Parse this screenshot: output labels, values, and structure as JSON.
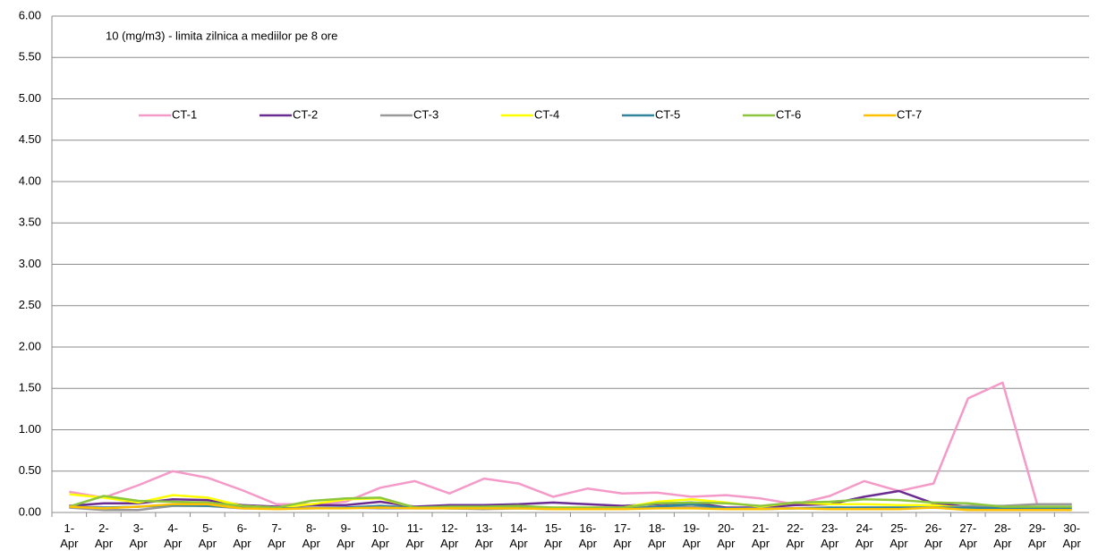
{
  "chart_data": {
    "type": "line",
    "annotation": "10 (mg/m3)  - limita zilnica a mediilor pe 8 ore",
    "categories": [
      "1-Apr",
      "2-Apr",
      "3-Apr",
      "4-Apr",
      "5-Apr",
      "6-Apr",
      "7-Apr",
      "8-Apr",
      "9-Apr",
      "10-Apr",
      "11-Apr",
      "12-Apr",
      "13-Apr",
      "14-Apr",
      "15-Apr",
      "16-Apr",
      "17-Apr",
      "18-Apr",
      "19-Apr",
      "20-Apr",
      "21-Apr",
      "22-Apr",
      "23-Apr",
      "24-Apr",
      "25-Apr",
      "26-Apr",
      "27-Apr",
      "28-Apr",
      "29-Apr",
      "30-Apr"
    ],
    "series": [
      {
        "name": "CT-1",
        "color": "#f49ac8",
        "values": [
          0.25,
          0.18,
          0.33,
          0.5,
          0.42,
          0.27,
          0.1,
          0.1,
          0.13,
          0.3,
          0.38,
          0.23,
          0.41,
          0.35,
          0.19,
          0.29,
          0.23,
          0.24,
          0.19,
          0.21,
          0.17,
          0.1,
          0.2,
          0.38,
          0.26,
          0.35,
          1.38,
          1.57,
          0.1,
          0.1
        ]
      },
      {
        "name": "CT-2",
        "color": "#6a2c91",
        "values": [
          0.08,
          0.11,
          0.11,
          0.16,
          0.15,
          0.09,
          0.07,
          0.09,
          0.09,
          0.13,
          0.07,
          0.09,
          0.09,
          0.1,
          0.12,
          0.1,
          0.08,
          0.1,
          0.12,
          0.06,
          0.06,
          0.09,
          0.1,
          0.19,
          0.26,
          0.11,
          0.07,
          0.06,
          0.06,
          0.06
        ]
      },
      {
        "name": "CT-3",
        "color": "#999999",
        "values": [
          0.06,
          0.03,
          0.03,
          0.08,
          0.08,
          0.05,
          0.05,
          0.06,
          0.06,
          0.05,
          0.05,
          0.05,
          0.04,
          0.05,
          0.04,
          0.04,
          0.05,
          0.07,
          0.07,
          0.05,
          0.05,
          0.05,
          0.05,
          0.06,
          0.06,
          0.06,
          0.08,
          0.08,
          0.1,
          0.1
        ]
      },
      {
        "name": "CT-4",
        "color": "#ffff00",
        "values": [
          0.22,
          0.18,
          0.12,
          0.21,
          0.18,
          0.08,
          0.06,
          0.1,
          0.16,
          0.17,
          0.06,
          0.06,
          0.06,
          0.07,
          0.06,
          0.06,
          0.06,
          0.13,
          0.16,
          0.12,
          0.07,
          0.12,
          0.1,
          0.1,
          0.09,
          0.09,
          0.05,
          0.05,
          0.05,
          0.05
        ]
      },
      {
        "name": "CT-5",
        "color": "#31859c",
        "values": [
          0.07,
          0.06,
          0.07,
          0.09,
          0.08,
          0.06,
          0.05,
          0.05,
          0.06,
          0.08,
          0.06,
          0.05,
          0.05,
          0.06,
          0.05,
          0.04,
          0.04,
          0.07,
          0.1,
          0.05,
          0.04,
          0.05,
          0.06,
          0.06,
          0.06,
          0.06,
          0.06,
          0.05,
          0.05,
          0.05
        ]
      },
      {
        "name": "CT-6",
        "color": "#8cc63f",
        "values": [
          0.07,
          0.2,
          0.14,
          0.13,
          0.12,
          0.08,
          0.06,
          0.14,
          0.17,
          0.18,
          0.06,
          0.07,
          0.07,
          0.08,
          0.06,
          0.06,
          0.06,
          0.11,
          0.12,
          0.11,
          0.08,
          0.12,
          0.13,
          0.16,
          0.15,
          0.12,
          0.11,
          0.07,
          0.07,
          0.07
        ]
      },
      {
        "name": "CT-7",
        "color": "#ffc000",
        "values": [
          0.07,
          0.05,
          0.07,
          0.1,
          0.1,
          0.05,
          0.04,
          0.05,
          0.05,
          0.06,
          0.05,
          0.05,
          0.05,
          0.05,
          0.04,
          0.04,
          0.04,
          0.05,
          0.05,
          0.04,
          0.04,
          0.05,
          0.04,
          0.04,
          0.04,
          0.06,
          0.03,
          0.03,
          0.03,
          0.03
        ]
      }
    ],
    "ylim": [
      0,
      6
    ],
    "yticks": [
      {
        "value": 0,
        "label": "0.00"
      },
      {
        "value": 0.5,
        "label": "0.50"
      },
      {
        "value": 1,
        "label": "1.00"
      },
      {
        "value": 1.5,
        "label": "1.50"
      },
      {
        "value": 2,
        "label": "2.00"
      },
      {
        "value": 2.5,
        "label": "2.50"
      },
      {
        "value": 3,
        "label": "3.00"
      },
      {
        "value": 3.5,
        "label": "3.50"
      },
      {
        "value": 4,
        "label": "4.00"
      },
      {
        "value": 4.5,
        "label": "4.50"
      },
      {
        "value": 5,
        "label": "5.00"
      },
      {
        "value": 5.5,
        "label": "5.50"
      },
      {
        "value": 6,
        "label": "6.00"
      }
    ],
    "grid": true,
    "legend": "top"
  }
}
